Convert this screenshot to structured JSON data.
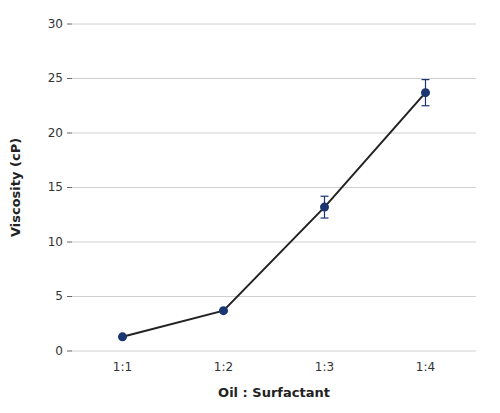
{
  "chart_data": {
    "type": "line",
    "categories": [
      "1:1",
      "1:2",
      "1:3",
      "1:4"
    ],
    "values": [
      1.3,
      3.7,
      13.2,
      23.7
    ],
    "errors": [
      0.0,
      0.0,
      1.0,
      1.2
    ],
    "color": "#1a3570",
    "marker": "circle",
    "xlabel": "Oil : Surfactant",
    "ylabel": "Viscosity (cP)",
    "ylim": [
      0,
      30
    ],
    "yticks": [
      0,
      5,
      10,
      15,
      20,
      25,
      30
    ],
    "grid": true
  }
}
